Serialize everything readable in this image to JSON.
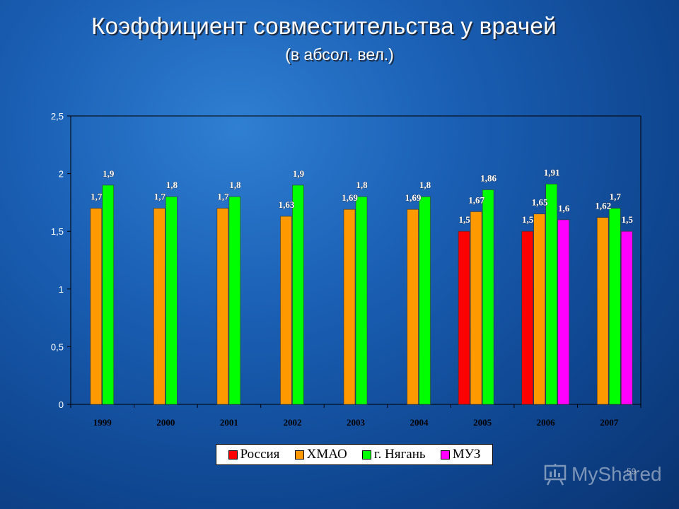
{
  "header": {
    "title": "Коэффициент совместительства у врачей",
    "subtitle": "(в абсол. вел.)"
  },
  "chart_data": {
    "type": "bar",
    "categories": [
      "1999",
      "2000",
      "2001",
      "2002",
      "2003",
      "2004",
      "2005",
      "2006",
      "2007"
    ],
    "series": [
      {
        "name": "Россия",
        "color": "#ff0000",
        "values": [
          null,
          null,
          null,
          null,
          null,
          null,
          1.5,
          1.5,
          null
        ]
      },
      {
        "name": "ХМАО",
        "color": "#ff9900",
        "values": [
          1.7,
          1.7,
          1.7,
          1.63,
          1.69,
          1.69,
          1.67,
          1.65,
          1.62
        ]
      },
      {
        "name": "г. Нягань",
        "color": "#00ff00",
        "values": [
          1.9,
          1.8,
          1.8,
          1.9,
          1.8,
          1.8,
          1.86,
          1.91,
          1.7
        ]
      },
      {
        "name": "МУЗ",
        "color": "#ff00ff",
        "values": [
          null,
          null,
          null,
          null,
          null,
          null,
          null,
          1.6,
          1.5
        ]
      }
    ],
    "ylim": [
      0,
      2.5
    ],
    "yticks": [
      "0",
      "0,5",
      "1",
      "1,5",
      "2",
      "2,5"
    ],
    "grid": false,
    "legend_position": "bottom"
  },
  "page_number": "59",
  "watermark": {
    "text": "MyShared",
    "icon": "presentation-board-icon"
  }
}
